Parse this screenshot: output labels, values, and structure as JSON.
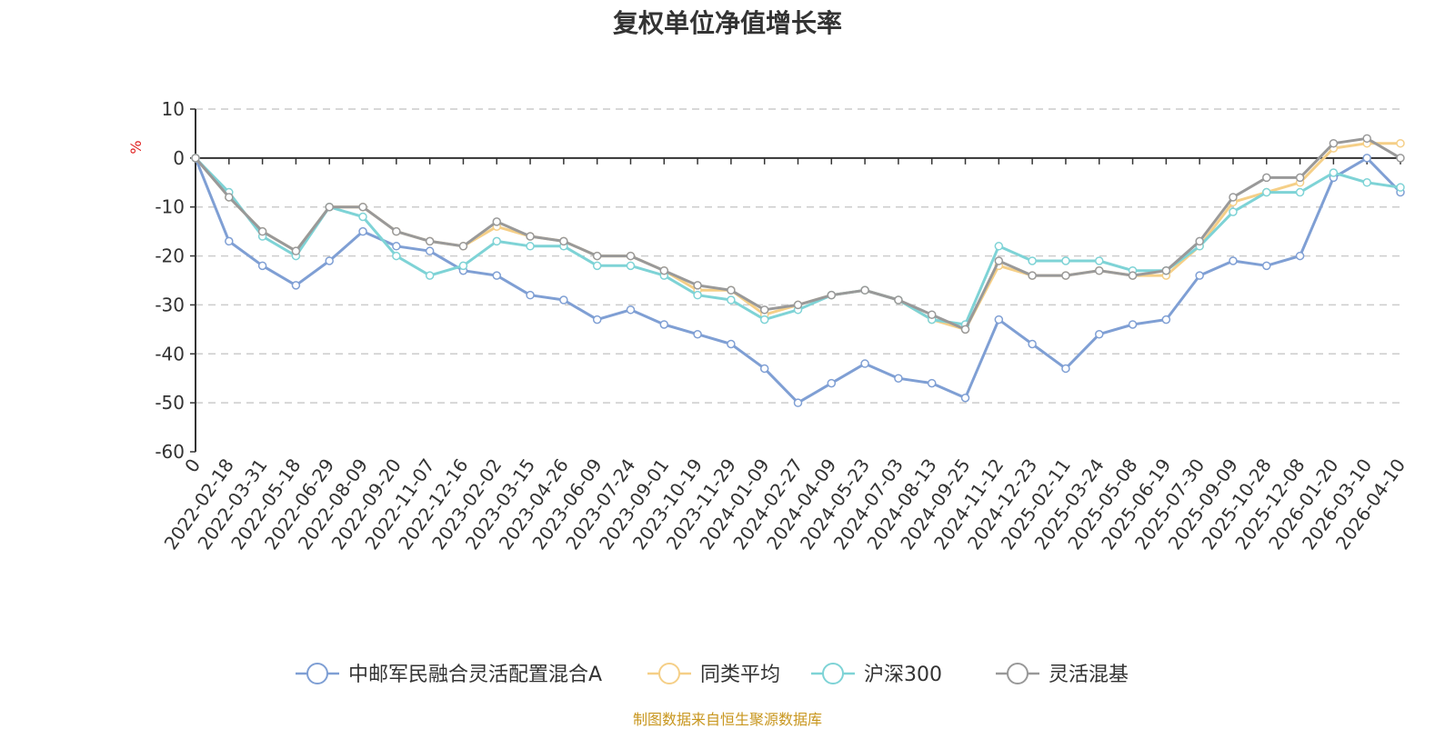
{
  "title": "复权单位净值增长率",
  "source_note": "制图数据来自恒生聚源数据库",
  "chart_data": {
    "type": "line",
    "title": "复权单位净值增长率",
    "ylabel": "%",
    "xlabel": "",
    "ylim": [
      -60,
      10
    ],
    "yticks": [
      10,
      0,
      -10,
      -20,
      -30,
      -40,
      -50,
      -60
    ],
    "grid": true,
    "legend_position": "bottom",
    "x_tick_labels": [
      "0",
      "2022-02-18",
      "2022-03-31",
      "2022-05-18",
      "2022-06-29",
      "2022-08-09",
      "2022-09-20",
      "2022-11-07",
      "2022-12-16",
      "2023-02-02",
      "2023-03-15",
      "2023-04-26",
      "2023-06-09",
      "2023-07-24",
      "2023-09-01",
      "2023-10-19",
      "2023-11-29",
      "2024-01-09",
      "2024-02-27",
      "2024-04-09",
      "2024-05-23",
      "2024-07-03",
      "2024-08-13",
      "2024-09-25",
      "2024-11-12",
      "2024-12-23",
      "2025-02-11",
      "2025-03-24",
      "2025-05-08",
      "2025-06-19",
      "2025-07-30",
      "2025-09-09",
      "2025-10-28",
      "2025-12-08",
      "2026-01-20",
      "2026-03-10",
      "2026-04-10"
    ],
    "series": [
      {
        "name": "中邮军民融合灵活配置混合A",
        "color": "#7f9fd4",
        "values": [
          0,
          -17,
          -22,
          -26,
          -21,
          -15,
          -18,
          -19,
          -23,
          -24,
          -28,
          -29,
          -33,
          -31,
          -34,
          -36,
          -38,
          -43,
          -50,
          -46,
          -42,
          -45,
          -46,
          -49,
          -33,
          -38,
          -43,
          -36,
          -34,
          -33,
          -24,
          -21,
          -22,
          -20,
          -4,
          0,
          -7
        ]
      },
      {
        "name": "同类平均",
        "color": "#f5cf87",
        "values": [
          0,
          -8,
          -15,
          -19,
          -10,
          -10,
          -15,
          -17,
          -18,
          -14,
          -16,
          -17,
          -20,
          -20,
          -23,
          -27,
          -27,
          -32,
          -30,
          -28,
          -27,
          -29,
          -33,
          -35,
          -22,
          -24,
          -24,
          -23,
          -24,
          -24,
          -18,
          -9,
          -7,
          -5,
          2,
          3,
          3
        ]
      },
      {
        "name": "沪深300",
        "color": "#7ed3d6",
        "values": [
          0,
          -7,
          -16,
          -20,
          -10,
          -12,
          -20,
          -24,
          -22,
          -17,
          -18,
          -18,
          -22,
          -22,
          -24,
          -28,
          -29,
          -33,
          -31,
          -28,
          -27,
          -29,
          -33,
          -34,
          -18,
          -21,
          -21,
          -21,
          -23,
          -23,
          -18,
          -11,
          -7,
          -7,
          -3,
          -5,
          -6
        ]
      },
      {
        "name": "灵活混基",
        "color": "#999999",
        "values": [
          0,
          -8,
          -15,
          -19,
          -10,
          -10,
          -15,
          -17,
          -18,
          -13,
          -16,
          -17,
          -20,
          -20,
          -23,
          -26,
          -27,
          -31,
          -30,
          -28,
          -27,
          -29,
          -32,
          -35,
          -21,
          -24,
          -24,
          -23,
          -24,
          -23,
          -17,
          -8,
          -4,
          -4,
          3,
          4,
          0
        ]
      }
    ]
  }
}
